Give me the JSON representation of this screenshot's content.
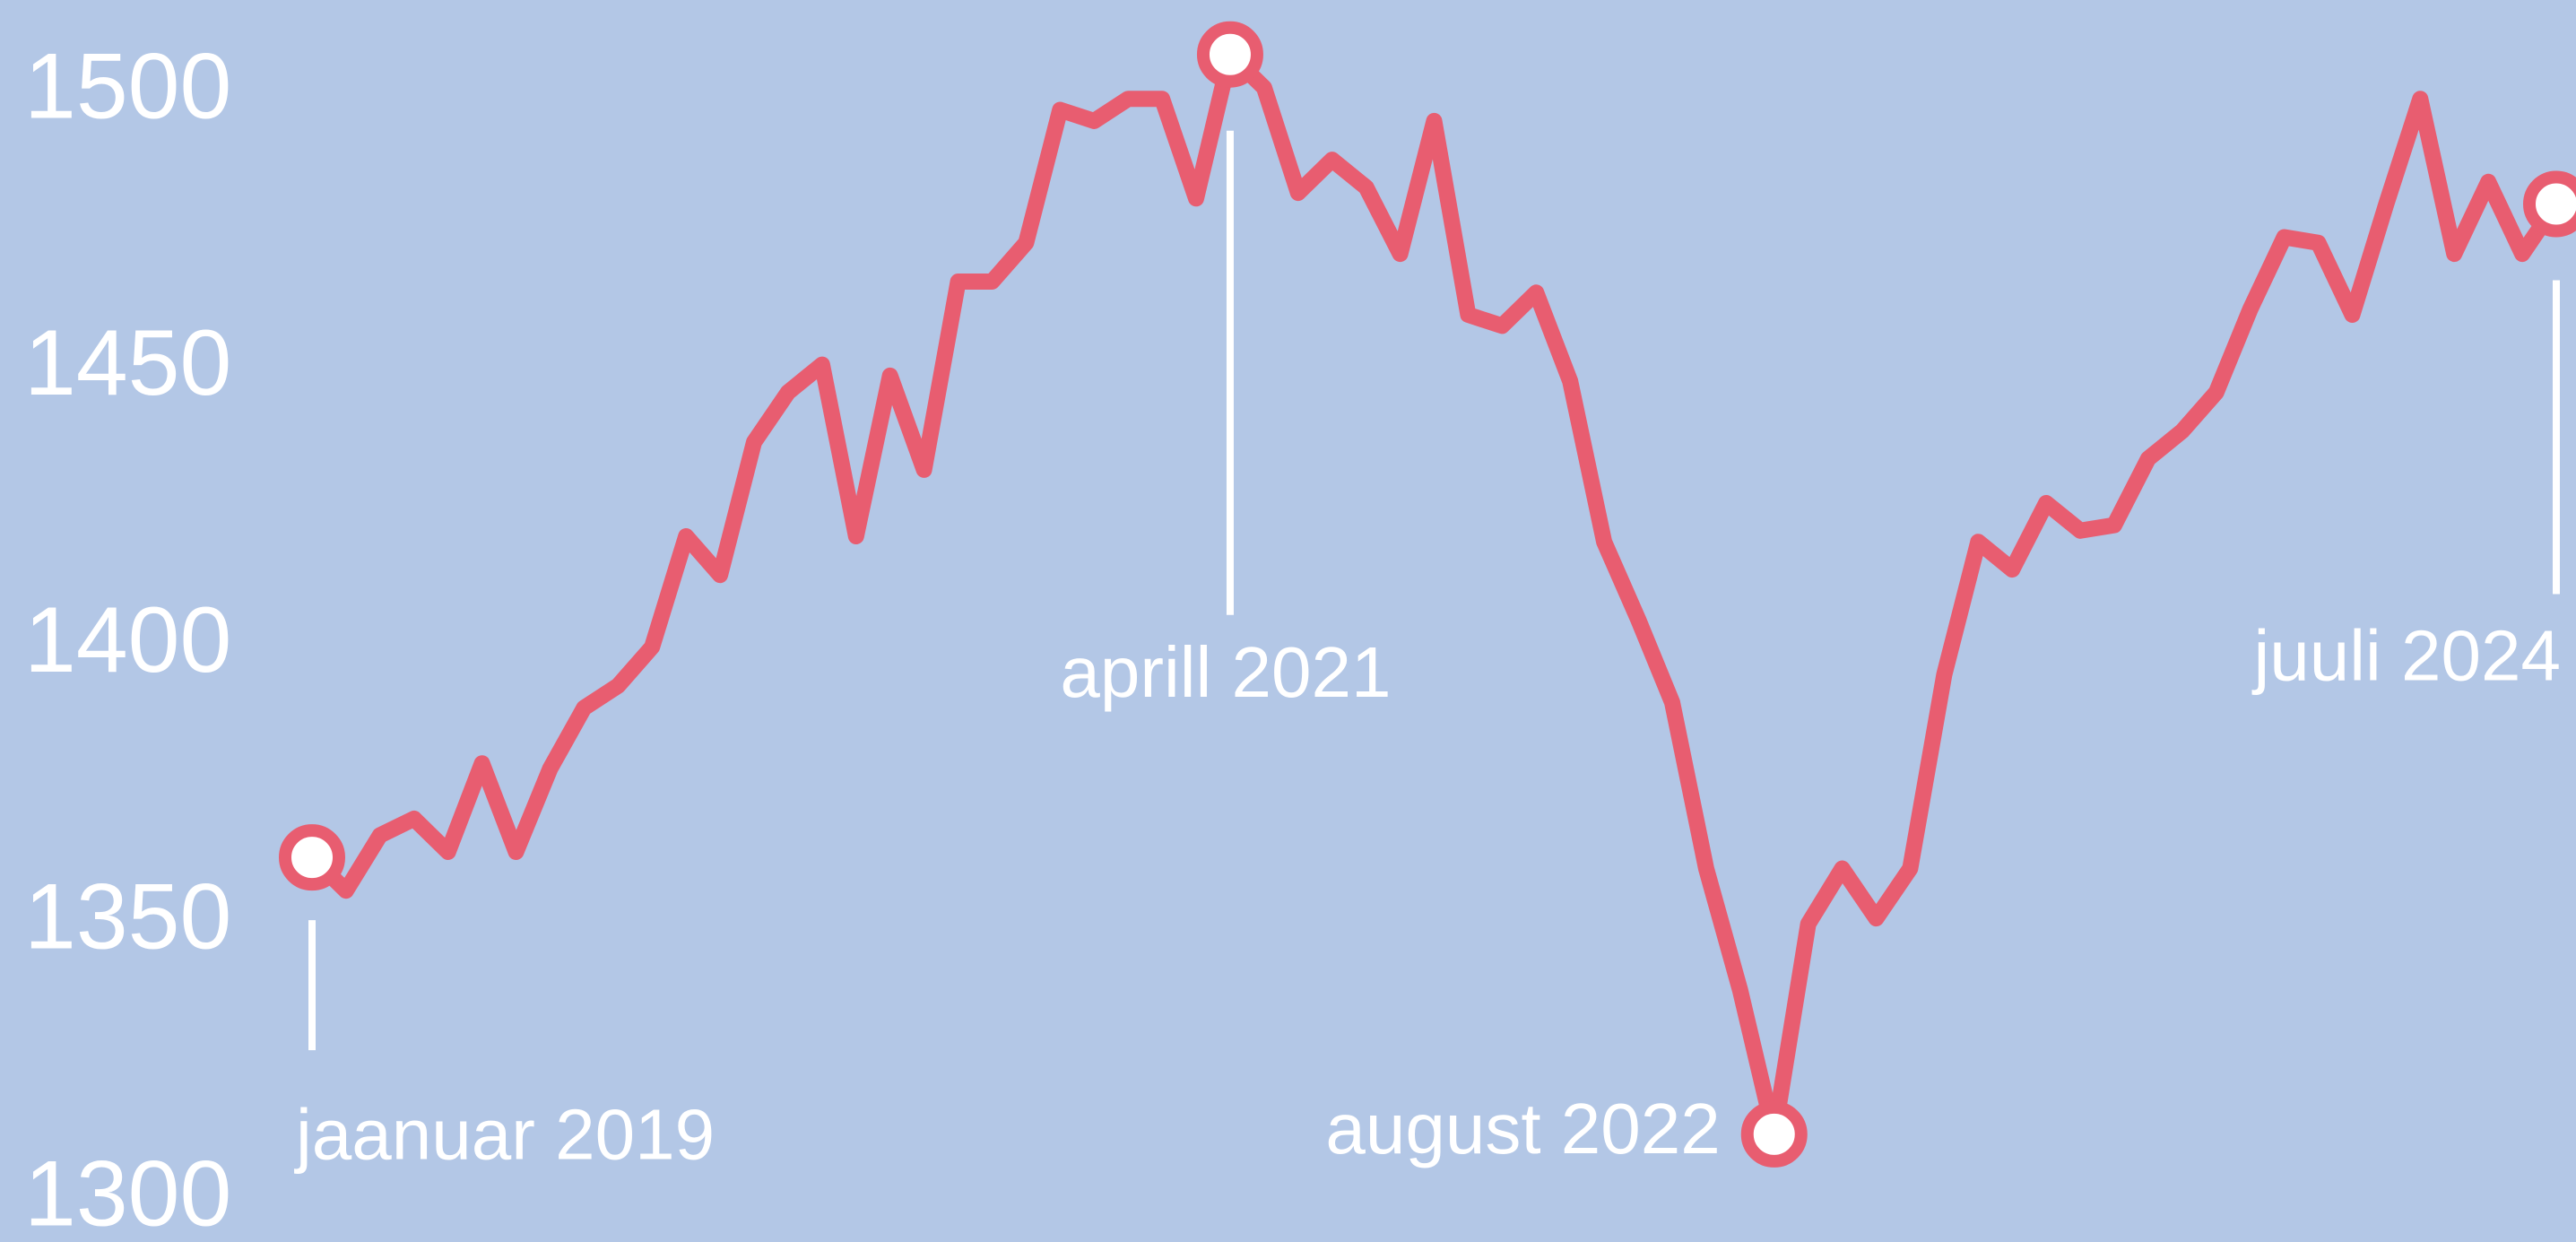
{
  "chart_data": {
    "type": "line",
    "categories": [
      "jaanuar 2019",
      null,
      null,
      null,
      null,
      null,
      null,
      null,
      null,
      null,
      null,
      null,
      null,
      null,
      null,
      null,
      null,
      null,
      null,
      null,
      null,
      null,
      null,
      null,
      null,
      null,
      null,
      "aprill 2021",
      null,
      null,
      null,
      null,
      null,
      null,
      null,
      null,
      null,
      null,
      null,
      null,
      null,
      null,
      null,
      "august 2022",
      null,
      null,
      null,
      null,
      null,
      null,
      null,
      null,
      null,
      null,
      null,
      null,
      null,
      null,
      null,
      null,
      null,
      null,
      null,
      null,
      null,
      null,
      "juuli 2024"
    ],
    "series": [
      {
        "color": "#e85d70",
        "values": [
          1362,
          1356,
          1366,
          1369,
          1363,
          1379,
          1363,
          1378,
          1389,
          1393,
          1400,
          1420,
          1413,
          1437,
          1446,
          1451,
          1420,
          1449,
          1432,
          1466,
          1466,
          1473,
          1497,
          1495,
          1499,
          1499,
          1481,
          1507,
          1501,
          1482,
          1488,
          1483,
          1471,
          1495,
          1460,
          1458,
          1464,
          1448,
          1419,
          1405,
          1390,
          1360,
          1338,
          1312,
          1350,
          1360,
          1351,
          1360,
          1395,
          1419,
          1414,
          1426,
          1421,
          1422,
          1434,
          1439,
          1446,
          1461,
          1474,
          1473,
          1460,
          1480,
          1499,
          1471,
          1484,
          1471,
          1480
        ]
      }
    ],
    "ylim": [
      1300,
      1500
    ],
    "yticks": [
      1300,
      1350,
      1400,
      1450,
      1500
    ],
    "grid": false
  }
}
